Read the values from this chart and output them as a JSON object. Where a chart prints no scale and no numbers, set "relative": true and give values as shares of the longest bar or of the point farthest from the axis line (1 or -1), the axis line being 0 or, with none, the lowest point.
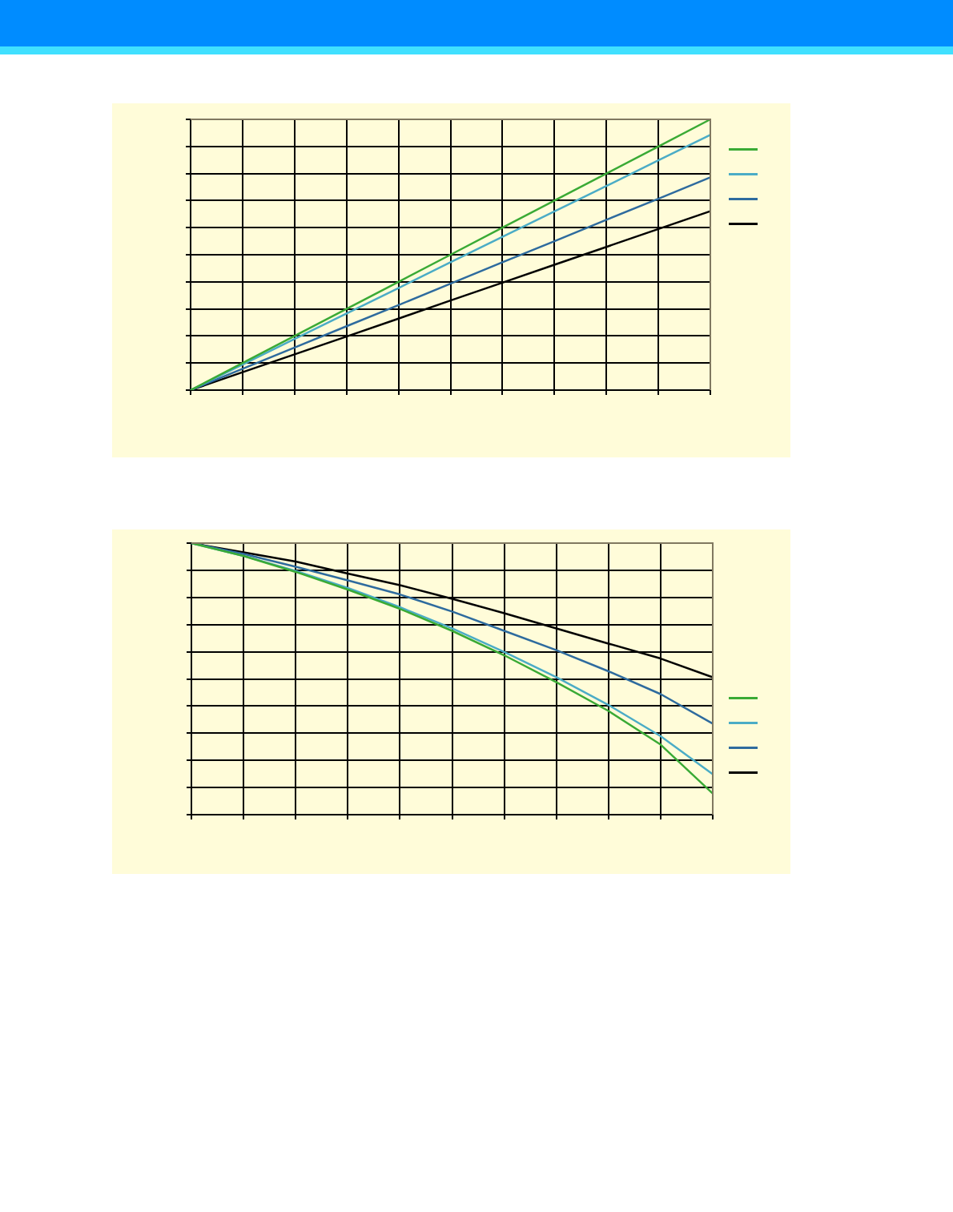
{
  "chart_data": [
    {
      "type": "line",
      "relative": true,
      "grid": true,
      "marker": "none",
      "line_style": "solid",
      "categories": [
        null,
        null,
        null,
        null,
        null,
        null,
        null,
        null,
        null,
        null,
        null
      ],
      "series": [
        {
          "color": "#3aaa35",
          "values": [
            0,
            0.1,
            0.2,
            0.3,
            0.4,
            0.5,
            0.6,
            0.7,
            0.8,
            0.9,
            1
          ]
        },
        {
          "color": "#4bacc6",
          "values": [
            0,
            0.094,
            0.189,
            0.283,
            0.377,
            0.472,
            0.566,
            0.66,
            0.754,
            0.849,
            0.943
          ]
        },
        {
          "color": "#2e6b9e",
          "values": [
            0,
            0.079,
            0.157,
            0.236,
            0.314,
            0.393,
            0.472,
            0.55,
            0.629,
            0.707,
            0.786
          ]
        },
        {
          "color": "#000000",
          "values": [
            0,
            0.066,
            0.132,
            0.198,
            0.264,
            0.331,
            0.397,
            0.463,
            0.529,
            0.595,
            0.661
          ]
        }
      ]
    },
    {
      "type": "line",
      "relative": true,
      "grid": true,
      "marker": "none",
      "line_style": "solid",
      "categories": [
        null,
        null,
        null,
        null,
        null,
        null,
        null,
        null,
        null,
        null,
        null
      ],
      "series": [
        {
          "color": "#3aaa35",
          "values": [
            1,
            0.953,
            0.894,
            0.829,
            0.758,
            0.677,
            0.587,
            0.488,
            0.382,
            0.258,
            0.078
          ]
        },
        {
          "color": "#4bacc6",
          "values": [
            1,
            0.953,
            0.898,
            0.835,
            0.764,
            0.686,
            0.599,
            0.506,
            0.404,
            0.289,
            0.149
          ]
        },
        {
          "color": "#2e6b9e",
          "values": [
            1,
            0.96,
            0.913,
            0.863,
            0.811,
            0.748,
            0.677,
            0.606,
            0.528,
            0.444,
            0.335
          ]
        },
        {
          "color": "#000000",
          "values": [
            1,
            0.966,
            0.932,
            0.888,
            0.845,
            0.795,
            0.742,
            0.686,
            0.63,
            0.575,
            0.506
          ]
        }
      ]
    }
  ]
}
